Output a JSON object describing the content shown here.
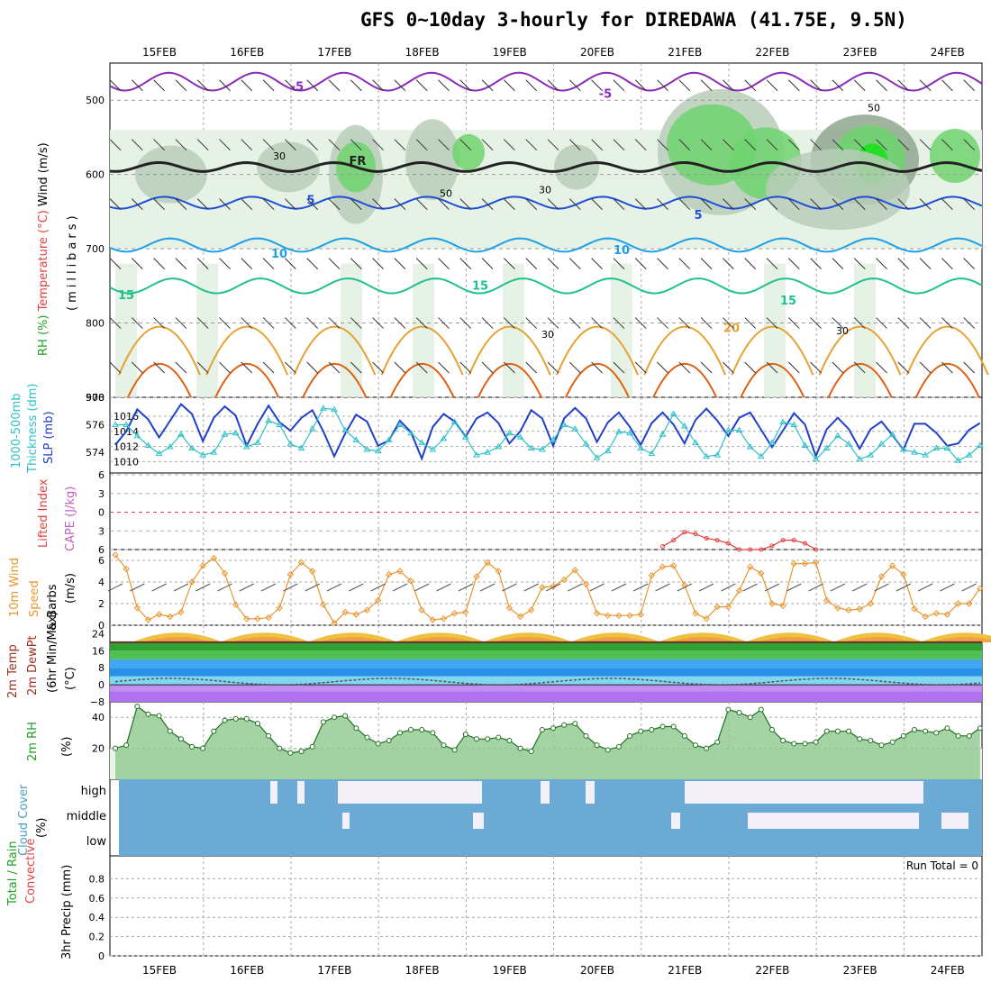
{
  "title": "GFS 0~10day 3-hourly for DIREDAWA (41.75E, 9.5N)",
  "dates": [
    "15FEB",
    "16FEB",
    "17FEB",
    "18FEB",
    "19FEB",
    "20FEB",
    "21FEB",
    "22FEB",
    "23FEB",
    "24FEB"
  ],
  "colors": {
    "rh_light": "#e6f2e6",
    "rh_mid": "#b8ccb8",
    "rh_dark": "#8fa88f",
    "rh_green": "#6ed46e",
    "rh_bright": "#18e018",
    "t_m5": "#8a2bb8",
    "t_0": "#222222",
    "t_5": "#2050d8",
    "t_10": "#1e9fe8",
    "t_15": "#20c090",
    "t_20": "#e8a030",
    "t_25": "#e06010",
    "slp": "#2040c8",
    "thick": "#30c0c8",
    "li": "#e04040",
    "wind": "#e8962e",
    "cloud": "#6aaad4",
    "cloud_clear": "#f4f0fa"
  },
  "chart_data": [
    {
      "type": "contour",
      "panel": "upper-air",
      "ylabel_parts": [
        "RH (%)",
        "Temperature (°C)",
        "Wind (m/s)"
      ],
      "ylabel2": "(millibars)",
      "yticks": [
        500,
        600,
        700,
        800,
        900
      ],
      "ylim": [
        900,
        450
      ],
      "isotherm_labels": [
        "-5",
        "-5",
        "FR",
        "5",
        "5",
        "10",
        "10",
        "15",
        "15",
        "15",
        "20"
      ],
      "rh_labels": [
        "30",
        "30",
        "50",
        "30",
        "50",
        "30"
      ]
    },
    {
      "type": "line",
      "panel": "slp-thickness",
      "ylabel_parts": [
        "1000-500mb",
        "Thickness (dm)",
        "SLP (mb)"
      ],
      "left_ticks": [
        574,
        576,
        578
      ],
      "right_ticks": [
        1010,
        1012,
        1014,
        1016
      ],
      "x": [
        0,
        1,
        2,
        3,
        4,
        5,
        6,
        7,
        8,
        9,
        10,
        11,
        12,
        13,
        14,
        15,
        16,
        17,
        18,
        19,
        20,
        21,
        22,
        23,
        24,
        25,
        26,
        27,
        28,
        29,
        30,
        31,
        32,
        33,
        34,
        35,
        36,
        37,
        38,
        39,
        40,
        41,
        42,
        43,
        44,
        45,
        46,
        47,
        48,
        49,
        50,
        51,
        52,
        53,
        54,
        55,
        56,
        57,
        58,
        59,
        60,
        61,
        62,
        63,
        64,
        65,
        66,
        67,
        68,
        69,
        70,
        71,
        72,
        73,
        74,
        75,
        76,
        77,
        78,
        79
      ],
      "series": [
        {
          "name": "SLP (mb)",
          "values": [
            1012.2,
            1014.0,
            1016.9,
            1015.6,
            1013.2,
            1015.4,
            1017.6,
            1016.3,
            1012.7,
            1015.8,
            1017.3,
            1016.1,
            1012.1,
            1015.0,
            1017.4,
            1015.2,
            1014.1,
            1015.8,
            1016.8,
            1014.0,
            1010.7,
            1013.7,
            1016.2,
            1015.3,
            1012.1,
            1012.8,
            1015.4,
            1013.9,
            1010.4,
            1014.6,
            1016.3,
            1015.3,
            1013.3,
            1015.7,
            1016.5,
            1015.1,
            1012.4,
            1014.0,
            1016.8,
            1015.7,
            1012.1,
            1015.7,
            1017.1,
            1015.7,
            1012.6,
            1015.2,
            1016.5,
            1014.6,
            1012.2,
            1015.1,
            1016.5,
            1014.9,
            1012.4,
            1015.5,
            1017.0,
            1015.4,
            1013.4,
            1015.8,
            1016.5,
            1014.2,
            1011.9,
            1014.1,
            1016.4,
            1014.9,
            1010.7,
            1014.3,
            1015.8,
            1014.3,
            1011.7,
            1014.3,
            1015.3,
            1013.5,
            1011.6,
            1015.0,
            1015.0,
            1013.8,
            1012.1,
            1012.4,
            1014.2,
            1015.1
          ]
        },
        {
          "name": "1000-500mb Thickness (dm)",
          "values": [
            576.0,
            576.0,
            575.2,
            574.5,
            573.9,
            574.4,
            575.3,
            574.3,
            573.8,
            574.0,
            575.3,
            575.4,
            574.4,
            574.7,
            576.3,
            576.0,
            574.6,
            574.3,
            575.7,
            577.2,
            577.1,
            575.6,
            574.9,
            574.2,
            574.1,
            574.9,
            576.0,
            575.4,
            574.7,
            574.2,
            575.0,
            576.2,
            575.1,
            573.8,
            574.0,
            574.4,
            575.4,
            575.1,
            574.3,
            574.2,
            574.9,
            576.0,
            575.7,
            574.6,
            573.6,
            574.1,
            575.5,
            575.4,
            574.3,
            573.9,
            575.3,
            576.8,
            575.9,
            574.7,
            573.7,
            573.8,
            575.6,
            575.6,
            574.4,
            573.7,
            574.7,
            576.2,
            576.0,
            574.5,
            573.5,
            574.3,
            575.2,
            574.6,
            573.5,
            573.8,
            574.6,
            575.3,
            574.2,
            574.0,
            573.8,
            574.3,
            574.3,
            573.4,
            573.8,
            574.5
          ]
        }
      ]
    },
    {
      "type": "line",
      "panel": "stability",
      "ylabel_parts": [
        "CAPE (J/kg)",
        "Lifted Index"
      ],
      "yticks": [
        "-6",
        "-3",
        "0",
        "3",
        "6"
      ],
      "ylim": [
        -6,
        6
      ],
      "series": [
        {
          "name": "Lifted Index",
          "x": [
            50,
            51,
            52,
            53,
            54,
            55,
            56,
            57,
            58,
            59,
            60,
            61,
            62,
            63,
            64
          ],
          "values": [
            5.5,
            4.5,
            3.2,
            3.5,
            4.2,
            4.5,
            5.0,
            6.0,
            6.0,
            6.0,
            5.4,
            4.5,
            4.5,
            5.0,
            6.0
          ]
        }
      ]
    },
    {
      "type": "line",
      "panel": "10m-wind",
      "ylabel_parts": [
        "10m Wind",
        "Speed",
        "& Barbs",
        "(m/s)"
      ],
      "yticks": [
        0,
        2,
        4,
        6
      ],
      "ylim": [
        0,
        7
      ],
      "series": [
        {
          "name": "10m Wind Speed",
          "values": [
            6.5,
            5.2,
            1.6,
            0.5,
            1.0,
            0.8,
            1.2,
            4.0,
            5.5,
            6.2,
            4.8,
            1.9,
            0.6,
            0.6,
            0.7,
            1.6,
            4.7,
            5.8,
            5.0,
            1.9,
            0.2,
            1.2,
            1.0,
            1.4,
            2.3,
            4.7,
            5.0,
            4.1,
            1.4,
            0.5,
            0.6,
            1.1,
            1.2,
            4.5,
            5.8,
            5.0,
            1.6,
            0.8,
            1.4,
            3.5,
            3.6,
            4.2,
            5.1,
            3.8,
            1.1,
            0.9,
            0.9,
            0.9,
            1.0,
            4.6,
            5.4,
            5.5,
            3.7,
            1.1,
            0.6,
            1.7,
            1.7,
            3.2,
            5.4,
            4.8,
            2.0,
            1.8,
            5.7,
            5.7,
            5.8,
            2.3,
            1.6,
            1.4,
            1.5,
            2.0,
            4.5,
            5.5,
            4.7,
            1.5,
            0.8,
            1.1,
            1.0,
            2.0,
            2.0,
            3.4
          ]
        }
      ]
    },
    {
      "type": "area",
      "panel": "2m-temperature",
      "ylabel_parts": [
        "2m Temp",
        "2m DewPt",
        "(6hr Min/Max)",
        "(°C)"
      ],
      "yticks": [
        "24",
        "16",
        "8",
        "0",
        "-8"
      ],
      "ylim": [
        -8,
        28
      ]
    },
    {
      "type": "area",
      "panel": "2m-rh",
      "ylabel_parts": [
        "2m RH",
        "(%)"
      ],
      "yticks": [
        20,
        40
      ],
      "ylim": [
        0,
        50
      ],
      "series": [
        {
          "name": "2m RH",
          "values": [
            20,
            22,
            47,
            42,
            41,
            31,
            26,
            21,
            20,
            31,
            38,
            39,
            39,
            36,
            28,
            20,
            17,
            18,
            21,
            37,
            40,
            41,
            33,
            27,
            23,
            25,
            30,
            32,
            32,
            30,
            22,
            19,
            29,
            26,
            26,
            27,
            25,
            20,
            18,
            32,
            33,
            35,
            36,
            28,
            22,
            19,
            21,
            28,
            31,
            32,
            34,
            34,
            28,
            22,
            20,
            24,
            45,
            43,
            40,
            45,
            32,
            25,
            23,
            23,
            24,
            31,
            31,
            31,
            26,
            25,
            22,
            24,
            28,
            32,
            31,
            30,
            33,
            28,
            28,
            33
          ]
        }
      ]
    },
    {
      "type": "heatmap",
      "panel": "cloud-cover",
      "ylabel_parts": [
        "Cloud Cover",
        "(%)"
      ],
      "levels": [
        "high",
        "middle",
        "low"
      ]
    },
    {
      "type": "bar",
      "panel": "precip",
      "ylabel_parts": [
        "Total / Rain",
        "Convective",
        "3hr Precip (mm)"
      ],
      "yticks": [
        "0",
        "0.2",
        "0.4",
        "0.6",
        "0.8"
      ],
      "ylim": [
        0,
        1
      ],
      "run_total": "Run Total = 0",
      "values": []
    }
  ]
}
